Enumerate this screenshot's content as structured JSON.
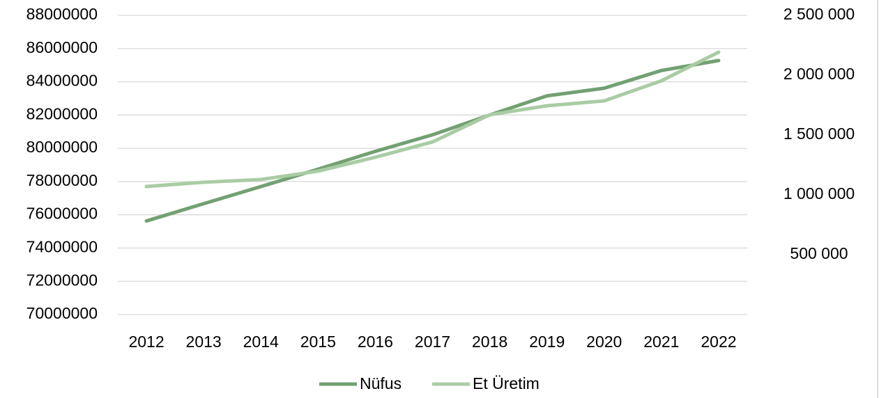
{
  "chart_data": {
    "type": "line",
    "categories": [
      "2012",
      "2013",
      "2014",
      "2015",
      "2016",
      "2017",
      "2018",
      "2019",
      "2020",
      "2021",
      "2022"
    ],
    "series": [
      {
        "name": "Nüfus",
        "color": "#72a072",
        "values": [
          75627384,
          76667864,
          77695904,
          78741053,
          79814871,
          80810525,
          82003882,
          83154997,
          83614362,
          84680273,
          85279553
        ]
      },
      {
        "name": "Et Üretim",
        "color": "#a9cca4",
        "axis": "y2",
        "values": [
          1070000,
          1105000,
          1128000,
          1198000,
          1314000,
          1442000,
          1669000,
          1744000,
          1785000,
          1953000,
          2192000
        ]
      }
    ],
    "ylim": [
      70000000,
      88000000
    ],
    "yticks": [
      70000000,
      72000000,
      74000000,
      76000000,
      78000000,
      80000000,
      82000000,
      84000000,
      86000000,
      88000000
    ],
    "y2lim": [
      0,
      2500000
    ],
    "y2ticks": [
      {
        "value": 500000,
        "label": "500 000"
      },
      {
        "value": 1000000,
        "label": "1 000 000"
      },
      {
        "value": 1500000,
        "label": "1 500 000"
      },
      {
        "value": 2000000,
        "label": "2 000 000"
      },
      {
        "value": 2500000,
        "label": "2 500 000"
      }
    ],
    "grid": true,
    "legend": "bottom"
  }
}
